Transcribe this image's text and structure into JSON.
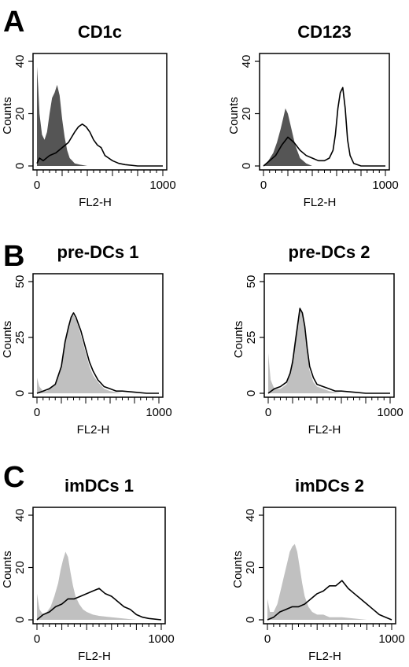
{
  "panel_labels": [
    "A",
    "B",
    "C"
  ],
  "chart_data": [
    {
      "type": "area",
      "panel": "A",
      "title": "CD1c",
      "xlabel": "FL2-H",
      "ylabel": "Counts",
      "xlim": [
        0,
        1000
      ],
      "ylim": [
        0,
        40
      ],
      "x_tick_labels": [
        "0",
        "1000"
      ],
      "y_tick_labels": [
        "0",
        "20",
        "40"
      ],
      "series": [
        {
          "style": "filled",
          "color": "#555555",
          "x": [
            0,
            10,
            20,
            40,
            60,
            80,
            100,
            120,
            140,
            160,
            180,
            200,
            220,
            240,
            260,
            280,
            300,
            340,
            400,
            1000
          ],
          "y": [
            38,
            30,
            20,
            12,
            10,
            13,
            20,
            26,
            28,
            31,
            27,
            18,
            11,
            6,
            3,
            2,
            1,
            0.5,
            0,
            0
          ]
        },
        {
          "style": "outline",
          "color": "#000000",
          "x": [
            0,
            20,
            50,
            100,
            150,
            200,
            250,
            300,
            330,
            360,
            390,
            420,
            450,
            480,
            510,
            540,
            570,
            600,
            650,
            700,
            800,
            1000
          ],
          "y": [
            1,
            3,
            2,
            4,
            5,
            7,
            9,
            13,
            15,
            16,
            15,
            13,
            10,
            8,
            7,
            4,
            3,
            2,
            1,
            0.5,
            0,
            0
          ]
        }
      ]
    },
    {
      "type": "area",
      "panel": "A",
      "title": "CD123",
      "xlabel": "FL2-H",
      "ylabel": "Counts",
      "xlim": [
        0,
        1000
      ],
      "ylim": [
        0,
        40
      ],
      "x_tick_labels": [
        "0",
        "1000"
      ],
      "y_tick_labels": [
        "0",
        "20",
        "40"
      ],
      "series": [
        {
          "style": "filled",
          "color": "#555555",
          "x": [
            0,
            40,
            80,
            110,
            140,
            160,
            180,
            200,
            220,
            240,
            260,
            300,
            350,
            400,
            1000
          ],
          "y": [
            0,
            2,
            5,
            9,
            14,
            18,
            22,
            20,
            16,
            12,
            8,
            3,
            1,
            0,
            0
          ]
        },
        {
          "style": "outline",
          "color": "#000000",
          "x": [
            0,
            50,
            100,
            150,
            200,
            250,
            300,
            350,
            400,
            450,
            500,
            540,
            570,
            590,
            610,
            630,
            650,
            670,
            690,
            710,
            740,
            800,
            1000
          ],
          "y": [
            0,
            2,
            4,
            8,
            11,
            9,
            6,
            4,
            3,
            2,
            2,
            3,
            6,
            12,
            22,
            28,
            30,
            22,
            10,
            4,
            1,
            0,
            0
          ]
        }
      ]
    },
    {
      "type": "area",
      "panel": "B",
      "title": "pre-DCs 1",
      "xlabel": "FL2-H",
      "ylabel": "Counts",
      "xlim": [
        0,
        1000
      ],
      "ylim": [
        0,
        50
      ],
      "x_tick_labels": [
        "0",
        "1000"
      ],
      "y_tick_labels": [
        "0",
        "25",
        "50"
      ],
      "series": [
        {
          "style": "filled",
          "color": "#c0c0c0",
          "x": [
            0,
            20,
            50,
            80,
            100,
            150,
            200,
            230,
            260,
            280,
            300,
            320,
            340,
            360,
            380,
            400,
            430,
            460,
            500,
            550,
            600,
            650,
            700,
            1000
          ],
          "y": [
            7,
            3,
            1,
            1,
            2,
            4,
            12,
            22,
            30,
            34,
            35,
            33,
            30,
            26,
            22,
            18,
            12,
            8,
            5,
            2,
            1,
            0.5,
            0,
            0
          ]
        },
        {
          "style": "outline",
          "color": "#000000",
          "x": [
            0,
            50,
            100,
            150,
            200,
            230,
            260,
            280,
            300,
            320,
            340,
            360,
            380,
            400,
            430,
            460,
            500,
            550,
            600,
            650,
            700,
            800,
            900,
            1000
          ],
          "y": [
            0,
            1,
            2,
            4,
            12,
            23,
            30,
            34,
            36,
            34,
            31,
            28,
            24,
            20,
            14,
            10,
            6,
            3,
            2,
            1,
            1,
            0.5,
            0,
            0
          ]
        }
      ]
    },
    {
      "type": "area",
      "panel": "B",
      "title": "pre-DCs 2",
      "xlabel": "FL2-H",
      "ylabel": "Counts",
      "xlim": [
        0,
        1000
      ],
      "ylim": [
        0,
        50
      ],
      "x_tick_labels": [
        "0",
        "1000"
      ],
      "y_tick_labels": [
        "0",
        "25",
        "50"
      ],
      "series": [
        {
          "style": "filled",
          "color": "#c0c0c0",
          "x": [
            0,
            20,
            50,
            100,
            150,
            180,
            200,
            220,
            240,
            260,
            280,
            300,
            320,
            340,
            370,
            400,
            450,
            500,
            600,
            1000
          ],
          "y": [
            18,
            6,
            2,
            2,
            4,
            10,
            16,
            25,
            32,
            38,
            36,
            28,
            18,
            10,
            5,
            3,
            2,
            1,
            0,
            0
          ]
        },
        {
          "style": "outline",
          "color": "#000000",
          "x": [
            0,
            50,
            100,
            150,
            180,
            200,
            220,
            240,
            260,
            280,
            300,
            320,
            340,
            370,
            400,
            450,
            500,
            550,
            600,
            700,
            800,
            1000
          ],
          "y": [
            0,
            2,
            3,
            5,
            9,
            14,
            22,
            30,
            38,
            36,
            30,
            20,
            12,
            7,
            4,
            3,
            2,
            1,
            1,
            0.5,
            0,
            0
          ]
        }
      ]
    },
    {
      "type": "area",
      "panel": "C",
      "title": "imDCs 1",
      "xlabel": "FL2-H",
      "ylabel": "Counts",
      "xlim": [
        0,
        1000
      ],
      "ylim": [
        0,
        40
      ],
      "x_tick_labels": [
        "0",
        "1000"
      ],
      "y_tick_labels": [
        "0",
        "20",
        "40"
      ],
      "series": [
        {
          "style": "filled",
          "color": "#c0c0c0",
          "x": [
            0,
            20,
            50,
            80,
            110,
            140,
            170,
            190,
            210,
            230,
            250,
            270,
            290,
            310,
            340,
            370,
            400,
            450,
            500,
            600,
            800,
            1000
          ],
          "y": [
            10,
            4,
            2,
            3,
            5,
            9,
            14,
            19,
            23,
            26,
            24,
            18,
            13,
            9,
            6,
            4,
            3,
            2,
            1.5,
            1,
            0,
            0
          ]
        },
        {
          "style": "outline",
          "color": "#000000",
          "x": [
            0,
            50,
            100,
            150,
            200,
            250,
            300,
            350,
            400,
            450,
            500,
            550,
            600,
            650,
            700,
            750,
            800,
            850,
            900,
            1000
          ],
          "y": [
            0,
            2,
            3,
            5,
            6,
            8,
            8,
            9,
            10,
            11,
            12,
            10,
            9,
            7,
            5,
            4,
            2,
            1,
            0.5,
            0
          ]
        }
      ]
    },
    {
      "type": "area",
      "panel": "C",
      "title": "imDCs 2",
      "xlabel": "FL2-H",
      "ylabel": "Counts",
      "xlim": [
        0,
        1000
      ],
      "ylim": [
        0,
        40
      ],
      "x_tick_labels": [
        "0",
        "1000"
      ],
      "y_tick_labels": [
        "0",
        "20",
        "40"
      ],
      "series": [
        {
          "style": "filled",
          "color": "#c0c0c0",
          "x": [
            0,
            20,
            50,
            80,
            110,
            140,
            160,
            180,
            200,
            220,
            240,
            260,
            280,
            300,
            330,
            360,
            400,
            450,
            500,
            600,
            800,
            1000
          ],
          "y": [
            8,
            3,
            3,
            6,
            12,
            18,
            22,
            26,
            28,
            29,
            26,
            20,
            14,
            9,
            5,
            3,
            2,
            2,
            1,
            1,
            0,
            0
          ]
        },
        {
          "style": "outline",
          "color": "#000000",
          "x": [
            0,
            50,
            100,
            150,
            200,
            250,
            300,
            350,
            400,
            450,
            500,
            550,
            600,
            650,
            700,
            750,
            800,
            850,
            900,
            950,
            1000
          ],
          "y": [
            0,
            1,
            3,
            4,
            5,
            5,
            6,
            8,
            10,
            11,
            13,
            13,
            15,
            12,
            10,
            8,
            6,
            4,
            2,
            1,
            0
          ]
        }
      ]
    }
  ]
}
